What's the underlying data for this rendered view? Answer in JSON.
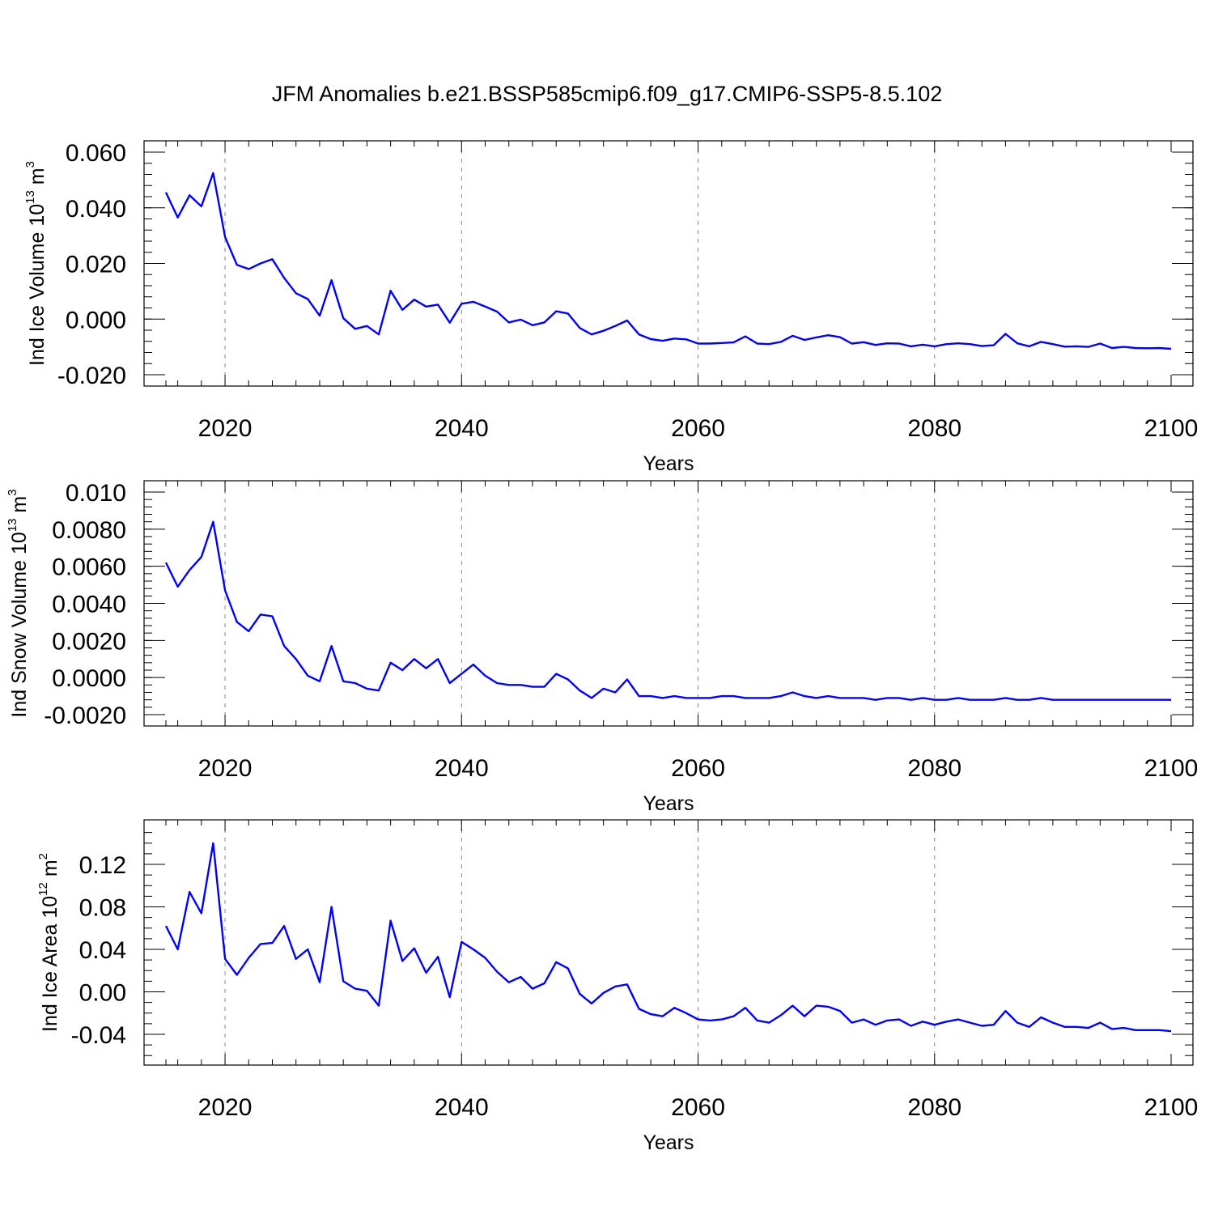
{
  "title": "JFM Anomalies b.e21.BSSP585cmip6.f09_g17.CMIP6-SSP5-8.5.102",
  "colors": {
    "line": "#0000ff",
    "axis": "#000000",
    "grid": "#888888"
  },
  "chart_data": [
    {
      "type": "line",
      "xlabel": "Years",
      "ylabel": {
        "text": "Ind Ice Volume 10",
        "exp": "13",
        "unit": " m",
        "unit_exp": "3"
      },
      "xlim": [
        2015,
        2100
      ],
      "ylim": [
        -0.02,
        0.06
      ],
      "xticks": [
        2020,
        2040,
        2060,
        2080,
        2100
      ],
      "xtick_labels": [
        "2020",
        "2040",
        "2060",
        "2080",
        "2100"
      ],
      "yticks": [
        -0.02,
        0.0,
        0.02,
        0.04,
        0.06
      ],
      "ytick_labels": [
        "-0.020",
        "0.000",
        "0.020",
        "0.040",
        "0.060"
      ],
      "yminor_step": 0.004,
      "grid_years": [
        2020,
        2040,
        2060,
        2080
      ],
      "x_start": 2015,
      "values": [
        0.0455,
        0.0365,
        0.0445,
        0.0405,
        0.0525,
        0.0295,
        0.0195,
        0.018,
        0.02,
        0.0215,
        0.0148,
        0.0093,
        0.0072,
        0.0012,
        0.014,
        0.0003,
        -0.0035,
        -0.0025,
        -0.0055,
        0.0102,
        0.0033,
        0.007,
        0.0045,
        0.0052,
        -0.0013,
        0.0055,
        0.0062,
        0.0045,
        0.0027,
        -0.0012,
        -0.0002,
        -0.0022,
        -0.0012,
        0.0028,
        0.002,
        -0.0032,
        -0.0055,
        -0.0042,
        -0.0025,
        -0.0005,
        -0.0055,
        -0.0072,
        -0.0078,
        -0.007,
        -0.0073,
        -0.0088,
        -0.0088,
        -0.0086,
        -0.0084,
        -0.0062,
        -0.0088,
        -0.009,
        -0.0082,
        -0.006,
        -0.0075,
        -0.0066,
        -0.0058,
        -0.0065,
        -0.0088,
        -0.0083,
        -0.0093,
        -0.0087,
        -0.0088,
        -0.0098,
        -0.0092,
        -0.0098,
        -0.009,
        -0.0087,
        -0.009,
        -0.0097,
        -0.0094,
        -0.0053,
        -0.0087,
        -0.0098,
        -0.0082,
        -0.009,
        -0.0099,
        -0.0098,
        -0.01,
        -0.0088,
        -0.0104,
        -0.01,
        -0.0104,
        -0.0105,
        -0.0104,
        -0.0107
      ]
    },
    {
      "type": "line",
      "xlabel": "Years",
      "ylabel": {
        "text": "Ind Snow Volume 10",
        "exp": "13",
        "unit": " m",
        "unit_exp": "3"
      },
      "xlim": [
        2015,
        2100
      ],
      "ylim": [
        -0.002,
        0.01
      ],
      "xticks": [
        2020,
        2040,
        2060,
        2080,
        2100
      ],
      "xtick_labels": [
        "2020",
        "2040",
        "2060",
        "2080",
        "2100"
      ],
      "yticks": [
        -0.002,
        0.0,
        0.002,
        0.004,
        0.006,
        0.008,
        0.01
      ],
      "ytick_labels": [
        "-0.0020",
        "0.0000",
        "0.0020",
        "0.0040",
        "0.0060",
        "0.0080",
        "0.010"
      ],
      "yminor_step": 0.0004,
      "grid_years": [
        2020,
        2040,
        2060,
        2080
      ],
      "x_start": 2015,
      "values": [
        0.0062,
        0.0049,
        0.0058,
        0.0065,
        0.0084,
        0.0047,
        0.003,
        0.0025,
        0.0034,
        0.0033,
        0.0017,
        0.001,
        0.0001,
        -0.0002,
        0.0017,
        -0.0002,
        -0.0003,
        -0.0006,
        -0.0007,
        0.0008,
        0.0004,
        0.001,
        0.0005,
        0.001,
        -0.0003,
        0.0002,
        0.0007,
        0.0001,
        -0.0003,
        -0.0004,
        -0.0004,
        -0.0005,
        -0.0005,
        0.0002,
        -0.0001,
        -0.0007,
        -0.0011,
        -0.0006,
        -0.0008,
        -0.0001,
        -0.001,
        -0.001,
        -0.0011,
        -0.001,
        -0.0011,
        -0.0011,
        -0.0011,
        -0.001,
        -0.001,
        -0.0011,
        -0.0011,
        -0.0011,
        -0.001,
        -0.0008,
        -0.001,
        -0.0011,
        -0.001,
        -0.0011,
        -0.0011,
        -0.0011,
        -0.0012,
        -0.0011,
        -0.0011,
        -0.0012,
        -0.0011,
        -0.0012,
        -0.0012,
        -0.0011,
        -0.0012,
        -0.0012,
        -0.0012,
        -0.0011,
        -0.0012,
        -0.0012,
        -0.0011,
        -0.0012,
        -0.0012,
        -0.0012,
        -0.0012,
        -0.0012,
        -0.0012,
        -0.0012,
        -0.0012,
        -0.0012,
        -0.0012,
        -0.0012
      ]
    },
    {
      "type": "line",
      "xlabel": "Years",
      "ylabel": {
        "text": "Ind Ice Area 10",
        "exp": "12",
        "unit": " m",
        "unit_exp": "2"
      },
      "xlim": [
        2015,
        2100
      ],
      "ylim": [
        -0.06,
        0.15
      ],
      "xticks": [
        2020,
        2040,
        2060,
        2080,
        2100
      ],
      "xtick_labels": [
        "2020",
        "2040",
        "2060",
        "2080",
        "2100"
      ],
      "yticks": [
        -0.04,
        0.0,
        0.04,
        0.08,
        0.12
      ],
      "ytick_labels": [
        "-0.04",
        "0.00",
        "0.04",
        "0.08",
        "0.12"
      ],
      "yminor_step": 0.01,
      "grid_years": [
        2020,
        2040,
        2060,
        2080
      ],
      "x_start": 2015,
      "values": [
        0.062,
        0.04,
        0.094,
        0.074,
        0.14,
        0.031,
        0.016,
        0.032,
        0.045,
        0.046,
        0.062,
        0.031,
        0.04,
        0.009,
        0.08,
        0.01,
        0.003,
        0.001,
        -0.013,
        0.067,
        0.029,
        0.041,
        0.018,
        0.033,
        -0.005,
        0.047,
        0.04,
        0.032,
        0.019,
        0.009,
        0.014,
        0.003,
        0.008,
        0.028,
        0.022,
        -0.002,
        -0.011,
        -0.001,
        0.005,
        0.007,
        -0.016,
        -0.021,
        -0.023,
        -0.015,
        -0.02,
        -0.026,
        -0.027,
        -0.026,
        -0.023,
        -0.015,
        -0.027,
        -0.029,
        -0.022,
        -0.013,
        -0.023,
        -0.013,
        -0.014,
        -0.018,
        -0.029,
        -0.026,
        -0.031,
        -0.027,
        -0.026,
        -0.032,
        -0.028,
        -0.031,
        -0.028,
        -0.026,
        -0.029,
        -0.032,
        -0.031,
        -0.018,
        -0.029,
        -0.033,
        -0.024,
        -0.029,
        -0.033,
        -0.033,
        -0.034,
        -0.029,
        -0.035,
        -0.034,
        -0.036,
        -0.036,
        -0.036,
        -0.037
      ]
    }
  ]
}
